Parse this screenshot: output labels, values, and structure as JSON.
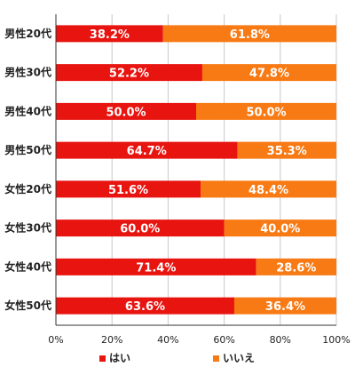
{
  "chart_data": {
    "type": "bar",
    "orientation": "horizontal",
    "stacked": true,
    "categories": [
      "男性20代",
      "男性30代",
      "男性40代",
      "男性50代",
      "女性20代",
      "女性30代",
      "女性40代",
      "女性50代"
    ],
    "series": [
      {
        "name": "はい",
        "color": "#e81410",
        "values": [
          38.2,
          52.2,
          50.0,
          64.7,
          51.6,
          60.0,
          71.4,
          63.6
        ]
      },
      {
        "name": "いいえ",
        "color": "#f77a14",
        "values": [
          61.8,
          47.8,
          50.0,
          35.3,
          48.4,
          40.0,
          28.6,
          36.4
        ]
      }
    ],
    "value_labels": [
      [
        "38.2%",
        "52.2%",
        "50.0%",
        "64.7%",
        "51.6%",
        "60.0%",
        "71.4%",
        "63.6%"
      ],
      [
        "61.8%",
        "47.8%",
        "50.0%",
        "35.3%",
        "48.4%",
        "40.0%",
        "28.6%",
        "36.4%"
      ]
    ],
    "xlim": [
      0,
      100
    ],
    "xticks": [
      0,
      20,
      40,
      60,
      80,
      100
    ],
    "xtick_labels": [
      "0%",
      "20%",
      "40%",
      "60%",
      "80%",
      "100%"
    ],
    "grid": "vertical",
    "legend": "bottom",
    "title": "",
    "xlabel": "",
    "ylabel": ""
  }
}
